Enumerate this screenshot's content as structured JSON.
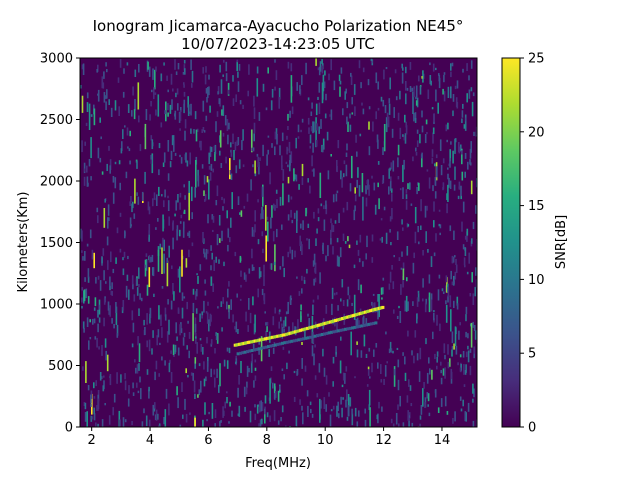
{
  "chart_data": {
    "type": "heatmap",
    "title": "Ionogram Jicamarca-Ayacucho Polarization NE45°",
    "subtitle": "10/07/2023-14:23:05 UTC",
    "xlabel": "Freq(MHz)",
    "ylabel": "Kilometers(Km)",
    "xlim": [
      1.6,
      15.2
    ],
    "ylim": [
      0,
      3000
    ],
    "x_ticks": [
      2,
      4,
      6,
      8,
      10,
      12,
      14
    ],
    "y_ticks": [
      0,
      500,
      1000,
      1500,
      2000,
      2500,
      3000
    ],
    "colorbar": {
      "label": "SNR[dB]",
      "range": [
        0,
        25
      ],
      "ticks": [
        0,
        5,
        10,
        15,
        20,
        25
      ],
      "colormap": "viridis"
    },
    "background_value": 0,
    "noise": {
      "level_mostly": [
        0,
        5
      ],
      "occasional_max": 25
    },
    "traces": [
      {
        "x": [
          6.9,
          7.4,
          8.0,
          8.6,
          9.2,
          9.8,
          10.4,
          11.0,
          11.6,
          12.0
        ],
        "y": [
          665,
          690,
          720,
          750,
          790,
          830,
          870,
          910,
          950,
          975
        ],
        "value": 24
      },
      {
        "x": [
          7.0,
          7.8,
          8.6,
          9.4,
          10.2,
          11.0,
          11.8
        ],
        "y": [
          595,
          640,
          685,
          725,
          770,
          810,
          850
        ],
        "value": 8
      }
    ],
    "grid": false,
    "legend": "none"
  }
}
